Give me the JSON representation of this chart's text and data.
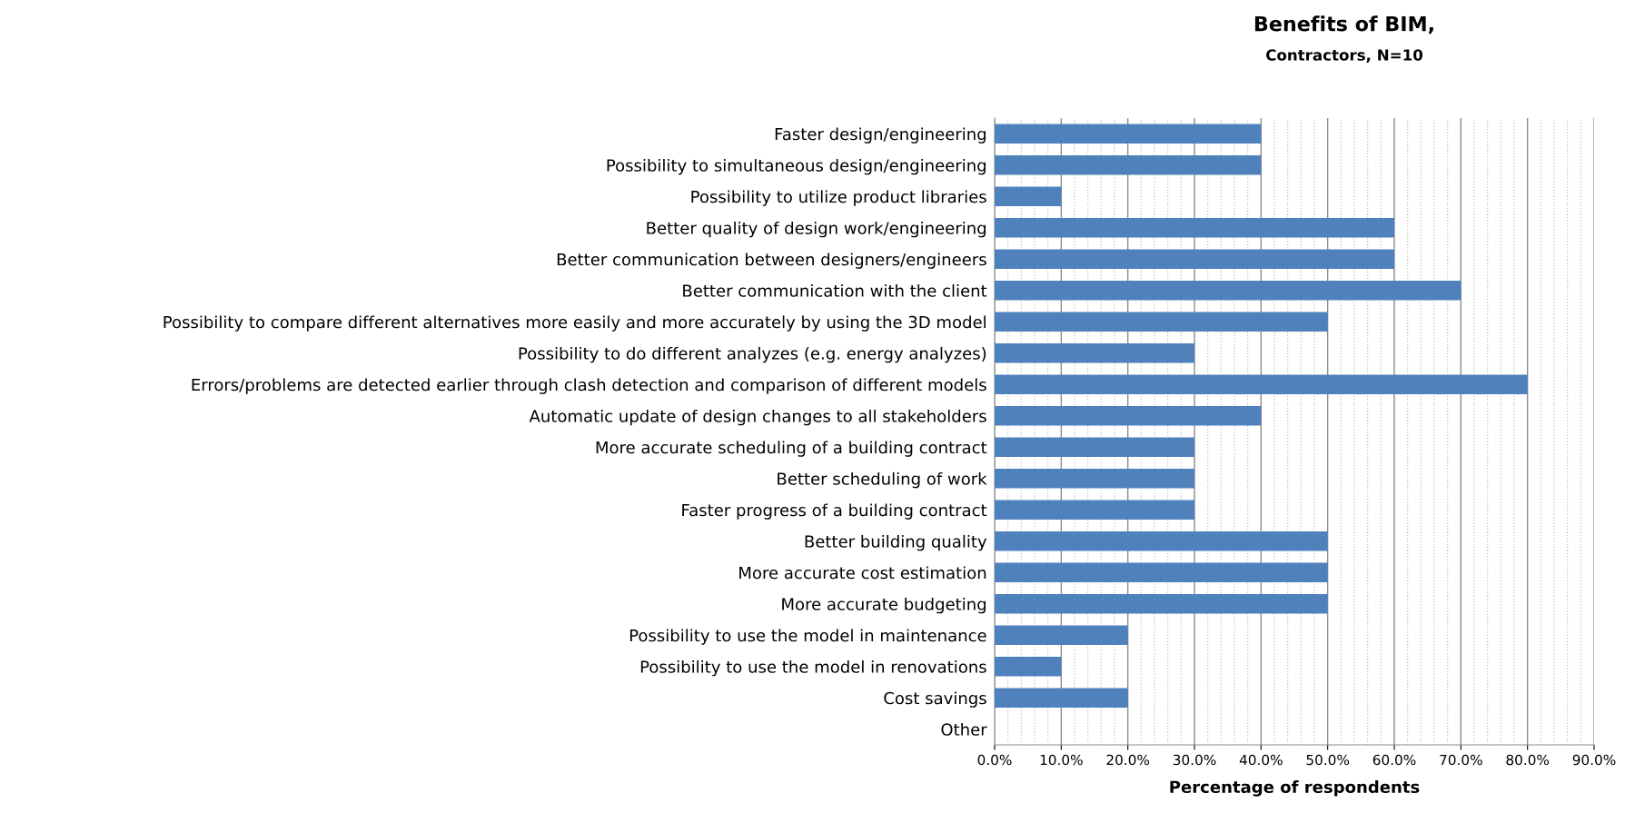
{
  "chart_data": {
    "type": "bar",
    "orientation": "horizontal",
    "title": "Benefits of BIM,",
    "subtitle": "Contractors, N=10",
    "xlabel": "Percentage of respondents",
    "categories": [
      "Faster design/engineering",
      "Possibility to simultaneous design/engineering",
      "Possibility to utilize product libraries",
      "Better quality of design work/engineering",
      "Better communication between designers/engineers",
      "Better communication with the client",
      "Possibility to compare different alternatives more easily and more accurately by using the 3D model",
      "Possibility to do different analyzes (e.g. energy analyzes)",
      "Errors/problems are detected earlier through clash detection and comparison of different models",
      "Automatic update of design changes to all stakeholders",
      "More accurate scheduling of a building contract",
      "Better scheduling of work",
      "Faster progress of a building contract",
      "Better building quality",
      "More accurate cost estimation",
      "More accurate budgeting",
      "Possibility to use the model in maintenance",
      "Possibility to use the model in renovations",
      "Cost savings",
      "Other"
    ],
    "values": [
      40,
      40,
      10,
      60,
      60,
      70,
      50,
      30,
      80,
      40,
      30,
      30,
      30,
      50,
      50,
      50,
      20,
      10,
      20,
      0
    ],
    "color": "#4f81bd",
    "xlim": [
      0,
      90
    ],
    "xticks": [
      {
        "value": 0,
        "label": "0.0%"
      },
      {
        "value": 10,
        "label": "10.0%"
      },
      {
        "value": 20,
        "label": "20.0%"
      },
      {
        "value": 30,
        "label": "30.0%"
      },
      {
        "value": 40,
        "label": "40.0%"
      },
      {
        "value": 50,
        "label": "50.0%"
      },
      {
        "value": 60,
        "label": "60.0%"
      },
      {
        "value": 70,
        "label": "70.0%"
      },
      {
        "value": 80,
        "label": "80.0%"
      },
      {
        "value": 90,
        "label": "90.0%"
      }
    ],
    "grid": "x"
  }
}
